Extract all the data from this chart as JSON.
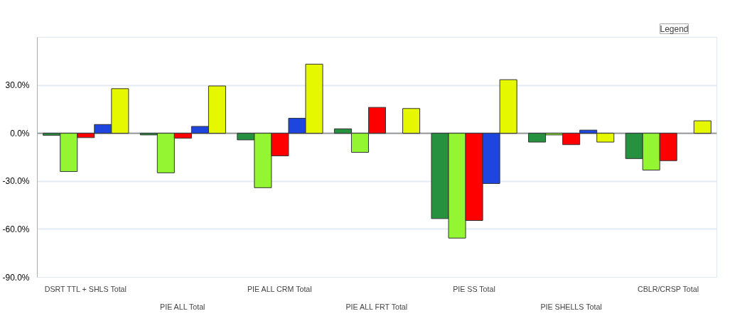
{
  "chart_data": {
    "type": "bar",
    "categories": [
      "DSRT TTL + SHLS Total",
      "PIE ALL Total",
      "PIE ALL CRM Total",
      "PIE ALL FRT Total",
      "PIE SS Total",
      "PIE SHELLS Total",
      "CBLR/CRSP Total"
    ],
    "series": [
      {
        "color": "#26923f",
        "values": [
          -1.3,
          -1.0,
          -4.1,
          2.8,
          -53.3,
          -5.5,
          -15.8
        ]
      },
      {
        "color": "#94f533",
        "values": [
          -23.9,
          -24.7,
          -34.0,
          -11.9,
          -65.5,
          -1.0,
          -23.0
        ]
      },
      {
        "color": "#ff0000",
        "values": [
          -2.7,
          -3.1,
          -14.1,
          16.2,
          -54.5,
          -7.1,
          -17.1
        ]
      },
      {
        "color": "#1e46de",
        "values": [
          5.5,
          4.3,
          9.4,
          null,
          -31.4,
          2.0,
          null
        ]
      },
      {
        "color": "#e5f800",
        "values": [
          27.9,
          29.6,
          43.2,
          15.5,
          33.5,
          -5.5,
          7.8
        ]
      }
    ],
    "ylim": [
      -90,
      60
    ],
    "yticks": [
      {
        "value": -90,
        "label": "-90.0%"
      },
      {
        "value": -60,
        "label": "-60.0%"
      },
      {
        "value": -30,
        "label": "-30.0%"
      },
      {
        "value": 0,
        "label": "0.0%"
      },
      {
        "value": 30,
        "label": "30.0%"
      }
    ],
    "grid": "y",
    "annotations": [
      "Legend"
    ]
  }
}
